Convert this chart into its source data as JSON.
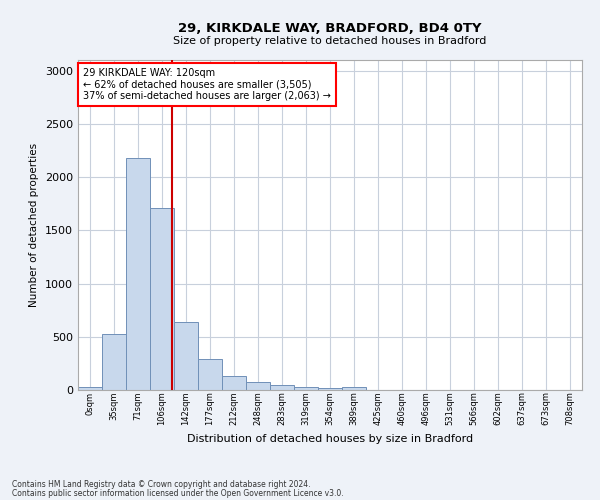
{
  "title1": "29, KIRKDALE WAY, BRADFORD, BD4 0TY",
  "title2": "Size of property relative to detached houses in Bradford",
  "xlabel": "Distribution of detached houses by size in Bradford",
  "ylabel": "Number of detached properties",
  "bar_color": "#c8d8ec",
  "bar_edge_color": "#7090b8",
  "grid_color": "#c8d0dc",
  "vline_color": "#cc0000",
  "vline_x": 3.43,
  "annotation_text_line1": "29 KIRKDALE WAY: 120sqm",
  "annotation_text_line2": "← 62% of detached houses are smaller (3,505)",
  "annotation_text_line3": "37% of semi-detached houses are larger (2,063) →",
  "categories": [
    "0sqm",
    "35sqm",
    "71sqm",
    "106sqm",
    "142sqm",
    "177sqm",
    "212sqm",
    "248sqm",
    "283sqm",
    "319sqm",
    "354sqm",
    "389sqm",
    "425sqm",
    "460sqm",
    "496sqm",
    "531sqm",
    "566sqm",
    "602sqm",
    "637sqm",
    "673sqm",
    "708sqm"
  ],
  "values": [
    30,
    525,
    2180,
    1710,
    640,
    290,
    135,
    75,
    45,
    30,
    20,
    30,
    0,
    0,
    0,
    0,
    0,
    0,
    0,
    0,
    0
  ],
  "ylim": [
    0,
    3100
  ],
  "yticks": [
    0,
    500,
    1000,
    1500,
    2000,
    2500,
    3000
  ],
  "footnote1": "Contains HM Land Registry data © Crown copyright and database right 2024.",
  "footnote2": "Contains public sector information licensed under the Open Government Licence v3.0.",
  "bg_color": "#eef2f8",
  "plot_bg_color": "#ffffff"
}
